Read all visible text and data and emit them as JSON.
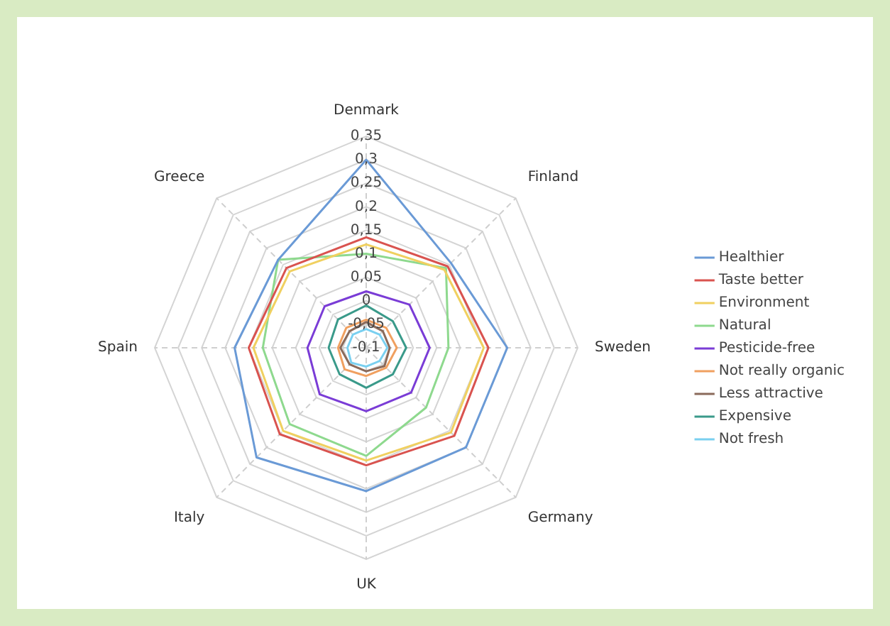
{
  "chart_data": {
    "type": "radar",
    "categories": [
      "Denmark",
      "Finland",
      "Sweden",
      "Germany",
      "UK",
      "Italy",
      "Spain",
      "Greece"
    ],
    "series": [
      {
        "name": "Healthier",
        "color": "#6a9ad6",
        "values": [
          0.3,
          0.155,
          0.2,
          0.2,
          0.205,
          0.23,
          0.18,
          0.165
        ]
      },
      {
        "name": "Taste better",
        "color": "#d9534f",
        "values": [
          0.135,
          0.145,
          0.16,
          0.165,
          0.15,
          0.16,
          0.15,
          0.14
        ]
      },
      {
        "name": "Environment",
        "color": "#f0d060",
        "values": [
          0.12,
          0.135,
          0.15,
          0.155,
          0.14,
          0.15,
          0.14,
          0.13
        ]
      },
      {
        "name": "Natural",
        "color": "#8ed98e",
        "values": [
          0.1,
          0.14,
          0.075,
          0.08,
          0.13,
          0.13,
          0.12,
          0.165
        ]
      },
      {
        "name": "Pesticide-free",
        "color": "#7a3cd6",
        "values": [
          0.02,
          0.03,
          0.035,
          0.035,
          0.035,
          0.04,
          0.025,
          0.025
        ]
      },
      {
        "name": "Not really organic",
        "color": "#f0a060",
        "values": [
          -0.04,
          -0.04,
          -0.035,
          -0.04,
          -0.04,
          -0.035,
          -0.04,
          -0.04
        ]
      },
      {
        "name": "Less attractive",
        "color": "#8a6a5a",
        "values": [
          -0.045,
          -0.05,
          -0.05,
          -0.045,
          -0.05,
          -0.05,
          -0.045,
          -0.05
        ]
      },
      {
        "name": "Expensive",
        "color": "#3a9a8a",
        "values": [
          -0.01,
          -0.02,
          -0.015,
          -0.02,
          -0.015,
          -0.02,
          -0.02,
          -0.015
        ]
      },
      {
        "name": "Not fresh",
        "color": "#7ad0f0",
        "values": [
          -0.06,
          -0.06,
          -0.055,
          -0.06,
          -0.06,
          -0.055,
          -0.06,
          -0.06
        ]
      }
    ],
    "ylim": [
      -0.1,
      0.35
    ],
    "yticks": [
      {
        "value": -0.1,
        "label": "-0,1"
      },
      {
        "value": -0.05,
        "label": "-0,05"
      },
      0,
      {
        "value": 0.05,
        "label": "0,05"
      },
      {
        "value": 0.1,
        "label": "0,1"
      },
      {
        "value": 0.15,
        "label": "0,15"
      },
      {
        "value": 0.2,
        "label": "0,2"
      },
      {
        "value": 0.25,
        "label": "0,25"
      },
      {
        "value": 0.3,
        "label": "0,3"
      },
      {
        "value": 0.35,
        "label": "0,35"
      }
    ],
    "grid": true,
    "legend": "right",
    "marker": "none",
    "line_style": "solid"
  }
}
